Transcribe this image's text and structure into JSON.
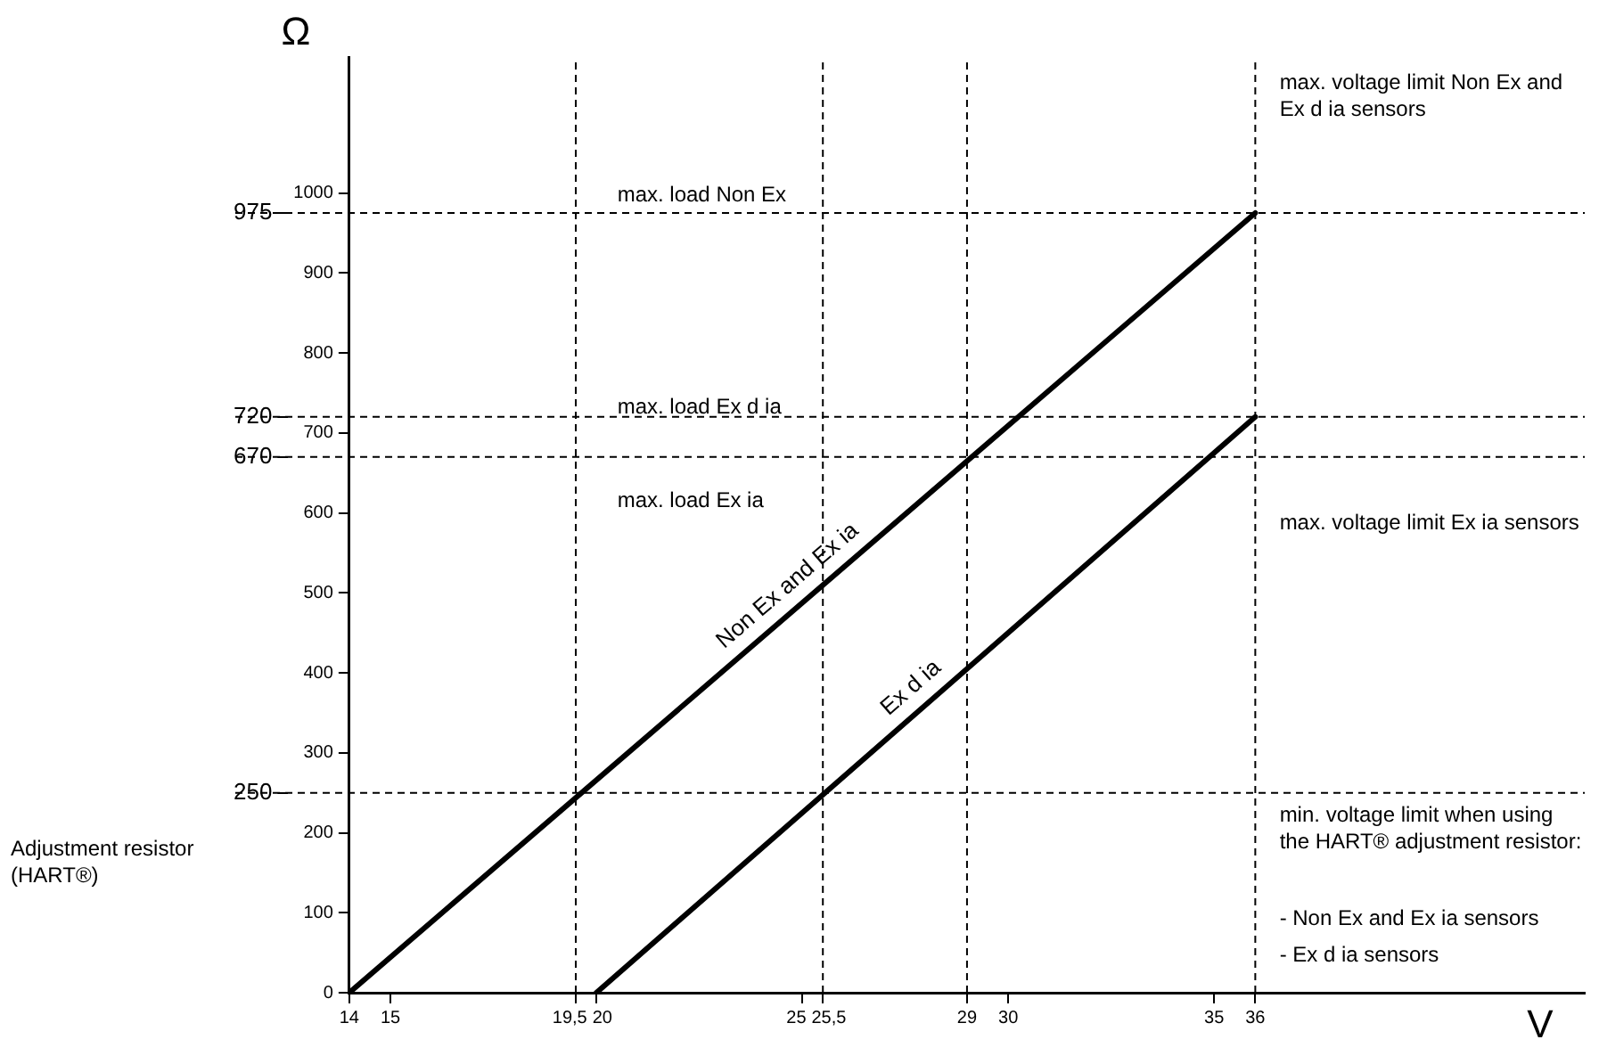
{
  "chart_data": {
    "type": "line",
    "xlabel": "V",
    "ylabel": "Ω",
    "xlim": [
      14,
      44
    ],
    "xticks": [
      14,
      15,
      {
        "value": 19.5,
        "label": "19,5"
      },
      20,
      25,
      {
        "value": 25.5,
        "label": "25,5"
      },
      29,
      30,
      35,
      36
    ],
    "ylim": [
      0,
      1170
    ],
    "yticks": [
      0,
      100,
      200,
      300,
      400,
      500,
      600,
      700,
      800,
      900,
      1000
    ],
    "y2lim": [
      0,
      1170
    ],
    "y2ticks": [
      250,
      670,
      720,
      975
    ],
    "grid": false,
    "legend": false,
    "marker": "none",
    "line_style": "solid",
    "series": [
      {
        "name": "Non Ex and Ex ia",
        "color": "#000000",
        "x": [
          14,
          36
        ],
        "values": [
          0,
          975
        ]
      },
      {
        "name": "Ex d ia",
        "color": "#000000",
        "x": [
          20,
          36
        ],
        "values": [
          0,
          720
        ]
      }
    ],
    "ref_lines": [
      {
        "axis": "y",
        "value": 975,
        "line_style": "dashed"
      },
      {
        "axis": "y",
        "value": 720,
        "line_style": "dashed"
      },
      {
        "axis": "y",
        "value": 670,
        "line_style": "dashed"
      },
      {
        "axis": "y",
        "value": 250,
        "line_style": "dashed"
      },
      {
        "axis": "x",
        "value": 19.5,
        "line_style": "dashed"
      },
      {
        "axis": "x",
        "value": 25.5,
        "line_style": "dashed"
      },
      {
        "axis": "x",
        "value": 29,
        "line_style": "dashed"
      },
      {
        "axis": "x",
        "value": 36,
        "line_style": "dashed"
      }
    ],
    "annotations": [
      "max. load Non Ex",
      "max. load Ex d ia",
      "max. load Ex ia",
      "max. voltage limit Non Ex and Ex d ia sensors",
      "max. voltage limit Ex ia sensors",
      "min. voltage limit when using the HART® adjustment resistor:",
      "- Non Ex and Ex ia sensors",
      "- Ex d ia sensors",
      "Adjustment resistor (HART®)"
    ]
  }
}
